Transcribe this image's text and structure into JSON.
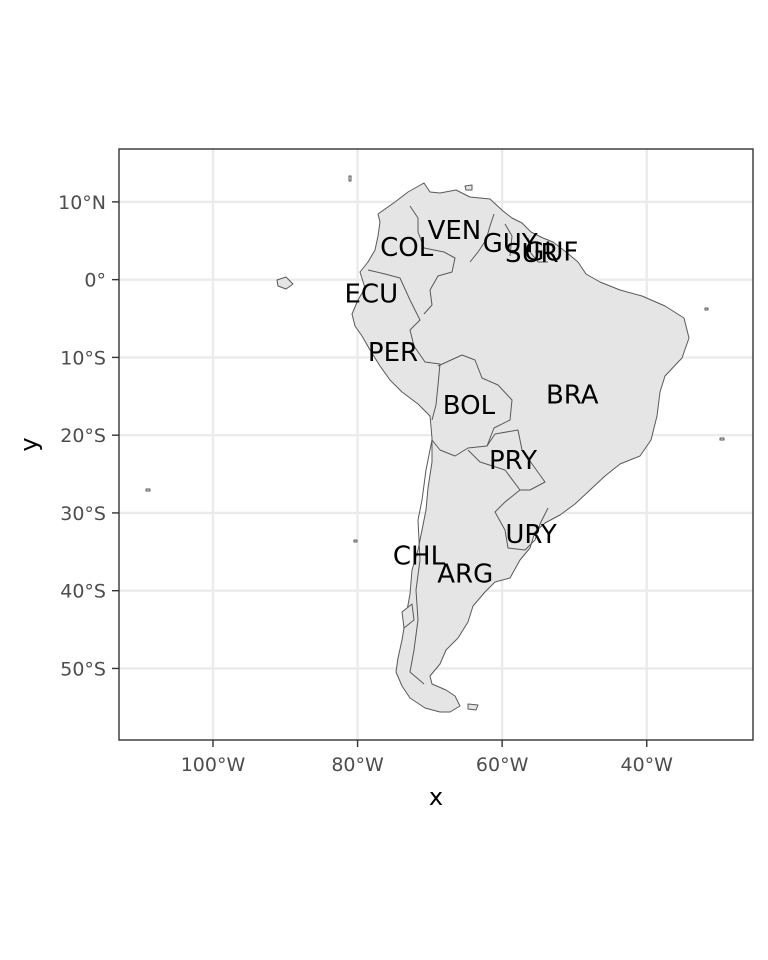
{
  "map": {
    "axes": {
      "xlabel": "x",
      "ylabel": "y",
      "xlim": [
        -113,
        -25.3
      ],
      "ylim": [
        -59.2,
        16.8
      ],
      "x_ticks": [
        {
          "value": -100,
          "label": "100°W"
        },
        {
          "value": -80,
          "label": "80°W"
        },
        {
          "value": -60,
          "label": "60°W"
        },
        {
          "value": -40,
          "label": "40°W"
        }
      ],
      "y_ticks": [
        {
          "value": 10,
          "label": "10°N"
        },
        {
          "value": 0,
          "label": "0°"
        },
        {
          "value": -10,
          "label": "10°S"
        },
        {
          "value": -20,
          "label": "20°S"
        },
        {
          "value": -30,
          "label": "30°S"
        },
        {
          "value": -40,
          "label": "40°S"
        },
        {
          "value": -50,
          "label": "50°S"
        }
      ],
      "grid": true
    },
    "countries": [
      {
        "code": "VEN",
        "lon": -66.6,
        "lat": 6.4
      },
      {
        "code": "GUY",
        "lon": -58.9,
        "lat": 4.7
      },
      {
        "code": "SUR",
        "lon": -55.9,
        "lat": 3.4
      },
      {
        "code": "GUF",
        "lon": -53.2,
        "lat": 3.6
      },
      {
        "code": "COL",
        "lon": -73.2,
        "lat": 4.2
      },
      {
        "code": "ECU",
        "lon": -78.1,
        "lat": -1.8
      },
      {
        "code": "PER",
        "lon": -75.1,
        "lat": -9.3
      },
      {
        "code": "BRA",
        "lon": -50.3,
        "lat": -14.8
      },
      {
        "code": "BOL",
        "lon": -64.6,
        "lat": -16.1
      },
      {
        "code": "PRY",
        "lon": -58.5,
        "lat": -23.2
      },
      {
        "code": "URY",
        "lon": -56.0,
        "lat": -32.7
      },
      {
        "code": "CHL",
        "lon": -71.5,
        "lat": -35.5
      },
      {
        "code": "ARG",
        "lon": -65.1,
        "lat": -37.8
      }
    ],
    "colors": {
      "land_fill": "#e5e5e5",
      "border": "#595959",
      "grid": "#ebebeb",
      "panel_border": "#333333",
      "tick_text": "#4d4d4d"
    }
  }
}
